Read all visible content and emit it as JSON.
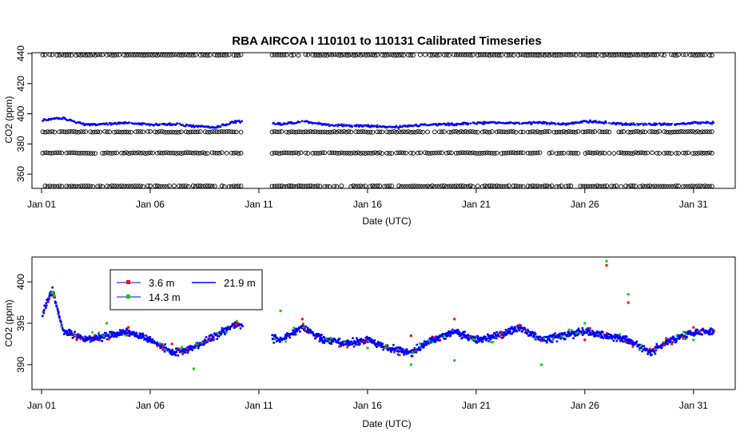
{
  "chart_data": [
    {
      "type": "scatter",
      "panel": "top",
      "title": "RBA   AIRCOA  I    110101  to  110131   Calibrated Timeseries",
      "xlabel": "Date (UTC)",
      "ylabel": "CO2 (ppm)",
      "xlim": [
        "2011-01-01",
        "2011-02-01"
      ],
      "ylim": [
        350,
        440
      ],
      "xticks": [
        {
          "date": "2011-01-01",
          "label": "Jan 01"
        },
        {
          "date": "2011-01-06",
          "label": "Jan 06"
        },
        {
          "date": "2011-01-11",
          "label": "Jan 11"
        },
        {
          "date": "2011-01-16",
          "label": "Jan 16"
        },
        {
          "date": "2011-01-21",
          "label": "Jan 21"
        },
        {
          "date": "2011-01-26",
          "label": "Jan 26"
        },
        {
          "date": "2011-01-31",
          "label": "Jan 31"
        }
      ],
      "yticks": [
        360,
        380,
        400,
        420,
        440
      ],
      "grid": false,
      "colors": {
        "standards": "#000000",
        "sample_blue": "#0000ff",
        "sample_red": "#ff0000",
        "sample_green": "#00cc00"
      },
      "reference_levels": [
        352,
        374,
        388,
        439
      ],
      "data_gaps": [
        [
          "2011-01-10",
          "2011-01-12"
        ]
      ],
      "ambient_series": [
        {
          "color": "#0000ff",
          "x": [
            "2011-01-01",
            "2011-01-02",
            "2011-01-03",
            "2011-01-04",
            "2011-01-05",
            "2011-01-06",
            "2011-01-07",
            "2011-01-08",
            "2011-01-09",
            "2011-01-10",
            "2011-01-11",
            "2011-01-12",
            "2011-01-13",
            "2011-01-14",
            "2011-01-15",
            "2011-01-16",
            "2011-01-17",
            "2011-01-18",
            "2011-01-19",
            "2011-01-20",
            "2011-01-21",
            "2011-01-22",
            "2011-01-23",
            "2011-01-24",
            "2011-01-25",
            "2011-01-26",
            "2011-01-27",
            "2011-01-28",
            "2011-01-29",
            "2011-01-30",
            "2011-01-31"
          ],
          "y": [
            396,
            397,
            393,
            393,
            394,
            393,
            393,
            392,
            391,
            395,
            395,
            393,
            395,
            393,
            392,
            392,
            391,
            392,
            393,
            393,
            394,
            394,
            394,
            394,
            393,
            395,
            394,
            393,
            393,
            393,
            394
          ]
        }
      ]
    },
    {
      "type": "scatter",
      "panel": "bottom",
      "xlabel": "Date (UTC)",
      "ylabel": "CO2 (ppm)",
      "xlim": [
        "2011-01-01",
        "2011-02-01"
      ],
      "ylim": [
        387,
        403
      ],
      "xticks": [
        {
          "date": "2011-01-01",
          "label": "Jan 01"
        },
        {
          "date": "2011-01-06",
          "label": "Jan 06"
        },
        {
          "date": "2011-01-11",
          "label": "Jan 11"
        },
        {
          "date": "2011-01-16",
          "label": "Jan 16"
        },
        {
          "date": "2011-01-21",
          "label": "Jan 21"
        },
        {
          "date": "2011-01-26",
          "label": "Jan 26"
        },
        {
          "date": "2011-01-31",
          "label": "Jan 31"
        }
      ],
      "yticks": [
        390,
        395,
        400
      ],
      "grid": false,
      "legend_position": "top-left",
      "series": [
        {
          "name": "3.6 m",
          "color": "#ff0000",
          "x": [
            "2011-01-05",
            "2011-01-07",
            "2011-01-10",
            "2011-01-13",
            "2011-01-18",
            "2011-01-20",
            "2011-01-23",
            "2011-01-26",
            "2011-01-27",
            "2011-01-28",
            "2011-01-30",
            "2011-01-31"
          ],
          "y": [
            394.5,
            392.5,
            395,
            395.5,
            393.5,
            395.5,
            394.8,
            393,
            402,
            397.5,
            392.5,
            394.5
          ]
        },
        {
          "name": "14.3 m",
          "color": "#00cc00",
          "x": [
            "2011-01-04",
            "2011-01-07",
            "2011-01-08",
            "2011-01-12",
            "2011-01-16",
            "2011-01-18",
            "2011-01-20",
            "2011-01-24",
            "2011-01-26",
            "2011-01-27",
            "2011-01-28",
            "2011-01-31"
          ],
          "y": [
            395,
            398.5,
            389.5,
            396.5,
            392,
            390,
            390.5,
            390,
            395,
            402.5,
            398.5,
            393
          ]
        },
        {
          "name": "21.9 m",
          "color": "#0000ff",
          "x": [
            "2011-01-01",
            "2011-01-01.5",
            "2011-01-02",
            "2011-01-03",
            "2011-01-04",
            "2011-01-05",
            "2011-01-06",
            "2011-01-07",
            "2011-01-08",
            "2011-01-09",
            "2011-01-10",
            "2011-01-11",
            "2011-01-12",
            "2011-01-13",
            "2011-01-14",
            "2011-01-15",
            "2011-01-16",
            "2011-01-17",
            "2011-01-18",
            "2011-01-19",
            "2011-01-20",
            "2011-01-21",
            "2011-01-22",
            "2011-01-23",
            "2011-01-24",
            "2011-01-25",
            "2011-01-26",
            "2011-01-27",
            "2011-01-28",
            "2011-01-29",
            "2011-01-30",
            "2011-01-31"
          ],
          "y": [
            396,
            399,
            394,
            393,
            393.5,
            394,
            393,
            391.5,
            392,
            393.5,
            395,
            393.5,
            393,
            394.5,
            393,
            392.5,
            393,
            392,
            391.5,
            393,
            394,
            393,
            393.5,
            394.5,
            393,
            393.5,
            394,
            393.5,
            393,
            391.5,
            393,
            394
          ]
        }
      ]
    }
  ]
}
